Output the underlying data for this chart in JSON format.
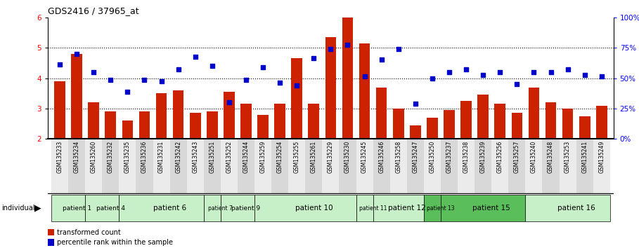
{
  "title": "GDS2416 / 37965_at",
  "categories": [
    "GSM135233",
    "GSM135234",
    "GSM135260",
    "GSM135232",
    "GSM135235",
    "GSM135236",
    "GSM135231",
    "GSM135242",
    "GSM135243",
    "GSM135251",
    "GSM135252",
    "GSM135244",
    "GSM135259",
    "GSM135254",
    "GSM135255",
    "GSM135261",
    "GSM135229",
    "GSM135230",
    "GSM135245",
    "GSM135246",
    "GSM135258",
    "GSM135247",
    "GSM135250",
    "GSM135237",
    "GSM135238",
    "GSM135239",
    "GSM135256",
    "GSM135257",
    "GSM135240",
    "GSM135248",
    "GSM135253",
    "GSM135241",
    "GSM135249"
  ],
  "bar_values": [
    3.9,
    4.8,
    3.2,
    2.9,
    2.6,
    2.9,
    3.5,
    3.6,
    2.85,
    2.9,
    3.55,
    3.15,
    2.8,
    3.15,
    4.65,
    3.15,
    5.35,
    6.0,
    5.15,
    3.7,
    3.0,
    2.45,
    2.7,
    2.95,
    3.25,
    3.45,
    3.15,
    2.85,
    3.7,
    3.2,
    3.0,
    2.75,
    3.1
  ],
  "dot_values": [
    4.45,
    4.8,
    4.2,
    3.95,
    3.55,
    3.95,
    3.9,
    4.3,
    4.7,
    4.4,
    3.2,
    3.95,
    4.35,
    3.85,
    3.75,
    4.65,
    4.95,
    5.1,
    4.05,
    4.6,
    4.95,
    3.15,
    4.0,
    4.2,
    4.3,
    4.1,
    4.2,
    3.8,
    4.2,
    4.2,
    4.3,
    4.1,
    4.05
  ],
  "patients": [
    {
      "label": "patient 1",
      "start": 0,
      "end": 2
    },
    {
      "label": "patient 4",
      "start": 2,
      "end": 4
    },
    {
      "label": "patient 6",
      "start": 4,
      "end": 9
    },
    {
      "label": "patient 7",
      "start": 9,
      "end": 10
    },
    {
      "label": "patient 9",
      "start": 10,
      "end": 12
    },
    {
      "label": "patient 10",
      "start": 12,
      "end": 18
    },
    {
      "label": "patient 11",
      "start": 18,
      "end": 19
    },
    {
      "label": "patient 12",
      "start": 19,
      "end": 22
    },
    {
      "label": "patient 13",
      "start": 22,
      "end": 23
    },
    {
      "label": "patient 15",
      "start": 23,
      "end": 28
    },
    {
      "label": "patient 16",
      "start": 28,
      "end": 33
    }
  ],
  "ylim": [
    2,
    6
  ],
  "yticks": [
    2,
    3,
    4,
    5,
    6
  ],
  "ytick_labels_left": [
    "2",
    "3",
    "4",
    "5",
    "6"
  ],
  "ytick_labels_right": [
    "0%",
    "25%",
    "50%",
    "75%",
    "100%"
  ],
  "bar_color": "#CC2200",
  "dot_color": "#0000CC",
  "light_green": "#c8f0c8",
  "dark_green": "#5abf5a",
  "legend_bar_label": "transformed count",
  "legend_dot_label": "percentile rank within the sample"
}
